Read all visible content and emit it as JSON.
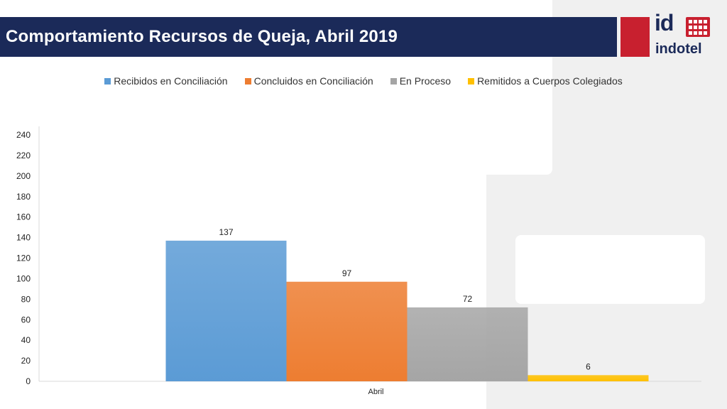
{
  "header": {
    "title": "Comportamiento Recursos de Queja, Abril 2019",
    "logo_text": "indotel"
  },
  "colors": {
    "title_bar": "#1b2a59",
    "brand_red": "#c8202f",
    "series": [
      "#5b9bd5",
      "#ed7d31",
      "#a5a5a5",
      "#ffc000"
    ]
  },
  "chart_data": {
    "type": "bar",
    "categories": [
      "Abril"
    ],
    "series": [
      {
        "name": "Recibidos en Conciliación",
        "values": [
          137
        ]
      },
      {
        "name": "Concluidos en Conciliación",
        "values": [
          97
        ]
      },
      {
        "name": "En Proceso",
        "values": [
          72
        ]
      },
      {
        "name": "Remitidos a Cuerpos Colegiados",
        "values": [
          6
        ]
      }
    ],
    "ylim": [
      0,
      240
    ],
    "yticks": [
      0,
      20,
      40,
      60,
      80,
      100,
      120,
      140,
      160,
      180,
      200,
      220,
      240
    ],
    "legend_position": "top",
    "grid": false,
    "data_labels": true
  }
}
